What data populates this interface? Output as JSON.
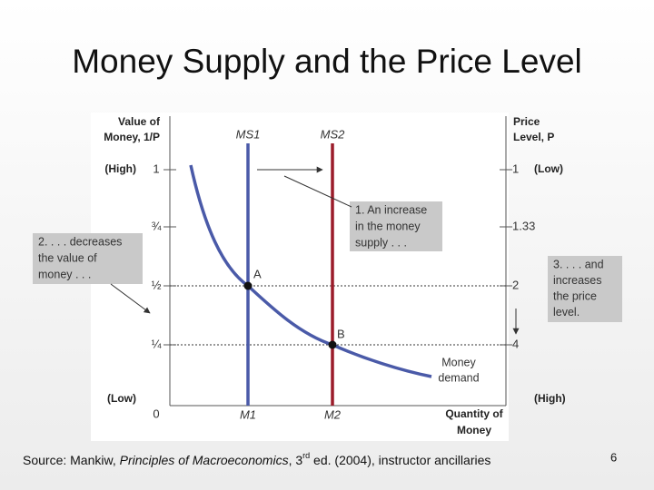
{
  "title": "Money Supply and the Price Level",
  "diagram": {
    "left_axis_label": [
      "Value of",
      "Money, 1/P"
    ],
    "right_axis_label": [
      "Price",
      "Level, P"
    ],
    "left_ticks": [
      "1",
      "¾",
      "½",
      "¼"
    ],
    "right_ticks": [
      "1",
      "1.33",
      "2",
      "4"
    ],
    "left_high": "(High)",
    "left_low": "(Low)",
    "right_low": "(Low)",
    "right_high": "(High)",
    "origin": "0",
    "ms1": "MS1",
    "ms2": "MS2",
    "m1": "M1",
    "m2": "M2",
    "point_a": "A",
    "point_b": "B",
    "demand_label": [
      "Money",
      "demand"
    ],
    "x_axis_label": [
      "Quantity of",
      "Money"
    ],
    "note_1": [
      "1. An increase",
      "in the money",
      "supply . . ."
    ],
    "note_2": [
      "2. . . . decreases",
      "the value of",
      "money . . ."
    ],
    "note_3": [
      "3. . . . and",
      "increases",
      "the price",
      "level."
    ]
  },
  "footer": {
    "source_prefix": "Source: Mankiw, ",
    "book": "Principles of Macroeconomics",
    "edition": ", 3",
    "ordinal": "rd",
    "rest": " ed. (2004), instructor ancillaries"
  },
  "page_number": "6"
}
